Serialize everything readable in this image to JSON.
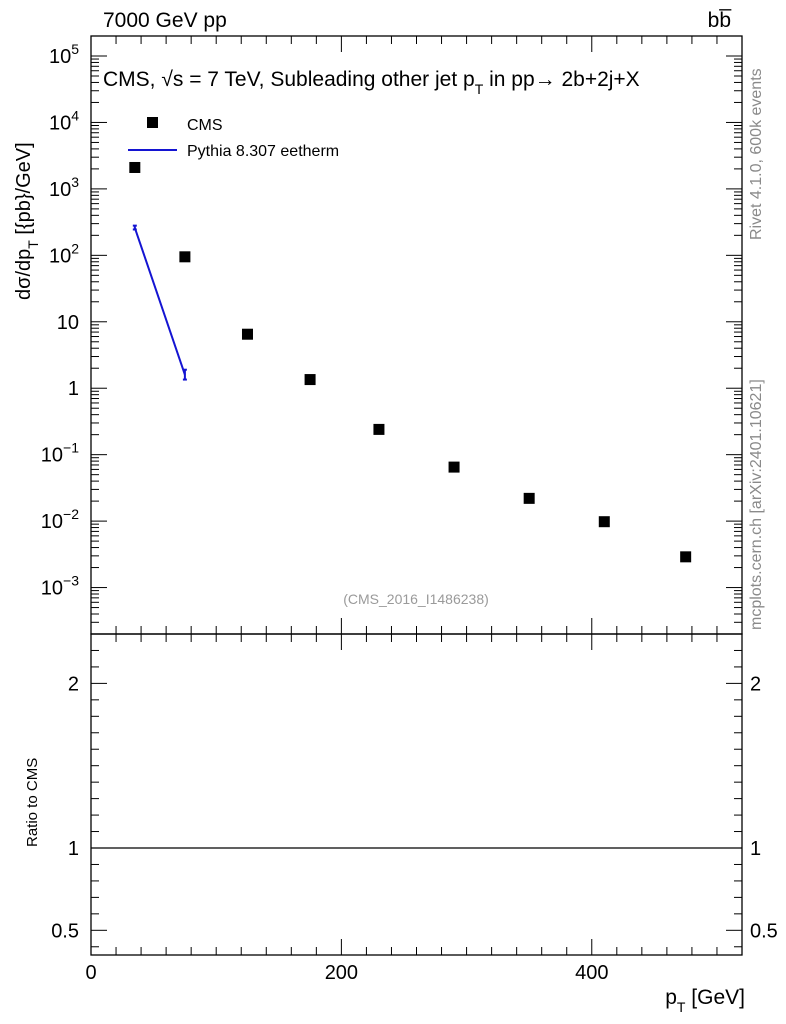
{
  "header": {
    "energy_label": "7000 GeV pp",
    "process_label": "bb̅"
  },
  "chart_data": {
    "type": "scatter",
    "title": "CMS, √s = 7 TeV, Subleading other jet p",
    "title_sub": "T",
    "title_suffix": " in pp→  2b+2j+X",
    "ylabel": "dσ/dp",
    "ylabel_sub": "T",
    "ylabel_suffix": " [{pb}/GeV]",
    "xlabel": "p",
    "xlabel_sub": "T",
    "xlabel_suffix": " [GeV]",
    "ratio_ylabel": "Ratio to CMS",
    "analysis_tag": "(CMS_2016_I1486238)",
    "x_range": [
      0,
      520
    ],
    "y_range_log": [
      0.0002,
      200000
    ],
    "ratio_range": [
      0.35,
      2.3
    ],
    "y_log_scale": true,
    "legend_position": "top-left",
    "x_ticks": [
      "0",
      "200",
      "400"
    ],
    "y_ticks": [
      "10^5",
      "10^4",
      "10^3",
      "10^2",
      "10",
      "1",
      "10^-1",
      "10^-2",
      "10^-3"
    ],
    "ratio_ticks": [
      "0.5",
      "1",
      "2"
    ],
    "series": [
      {
        "name": "CMS",
        "marker": "square",
        "color": "#000000",
        "x": [
          35,
          75,
          125,
          175,
          230,
          290,
          350,
          410,
          475
        ],
        "y": [
          2100,
          95,
          6.5,
          1.35,
          0.24,
          0.065,
          0.022,
          0.0098,
          0.0029
        ]
      },
      {
        "name": "Pythia 8.307 eetherm",
        "marker": "line",
        "color": "#1414d2",
        "x": [
          35,
          75
        ],
        "y": [
          260,
          1.6
        ],
        "yerr": [
          [
            15,
            20
          ],
          [
            0.25,
            0.3
          ]
        ]
      }
    ]
  },
  "side": {
    "rivet_label": "Rivet 4.1.0,  600k events",
    "mcplots_label": "mcplots.cern.ch [arXiv:2401.10621]"
  }
}
